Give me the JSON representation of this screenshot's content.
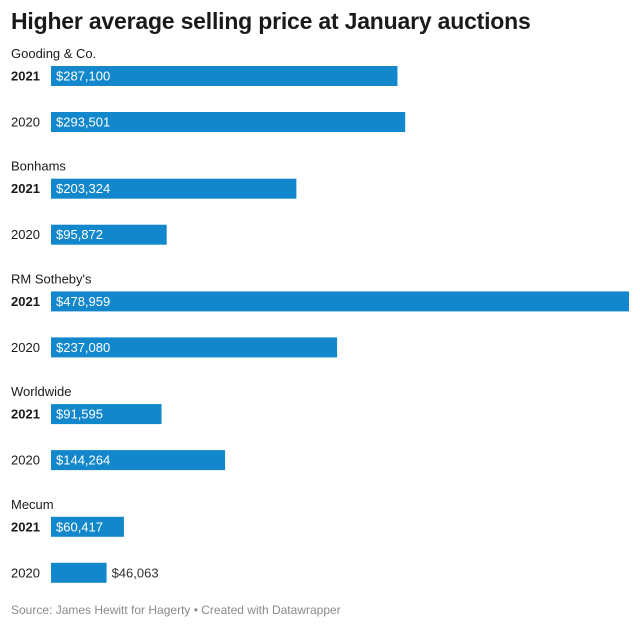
{
  "chart_data": {
    "type": "bar",
    "orientation": "horizontal",
    "title": "Higher average selling price at January auctions",
    "groups": [
      {
        "name": "Gooding & Co.",
        "rows": [
          {
            "year": "2021",
            "value": 287100,
            "label": "$287,100"
          },
          {
            "year": "2020",
            "value": 293501,
            "label": "$293,501"
          }
        ]
      },
      {
        "name": "Bonhams",
        "rows": [
          {
            "year": "2021",
            "value": 203324,
            "label": "$203,324"
          },
          {
            "year": "2020",
            "value": 95872,
            "label": "$95,872"
          }
        ]
      },
      {
        "name": "RM Sotheby's",
        "rows": [
          {
            "year": "2021",
            "value": 478959,
            "label": "$478,959"
          },
          {
            "year": "2020",
            "value": 237080,
            "label": "$237,080"
          }
        ]
      },
      {
        "name": "Worldwide",
        "rows": [
          {
            "year": "2021",
            "value": 91595,
            "label": "$91,595"
          },
          {
            "year": "2020",
            "value": 144264,
            "label": "$144,264"
          }
        ]
      },
      {
        "name": "Mecum",
        "rows": [
          {
            "year": "2021",
            "value": 60417,
            "label": "$60,417"
          },
          {
            "year": "2020",
            "value": 46063,
            "label": "$46,063"
          }
        ]
      }
    ],
    "xlim": [
      0,
      478959
    ],
    "bar_color": "#1287cc",
    "emphasized_year": "2021",
    "grid": false,
    "legend": "none",
    "source": "Source: James Hewitt for Hagerty • Created with Datawrapper"
  }
}
